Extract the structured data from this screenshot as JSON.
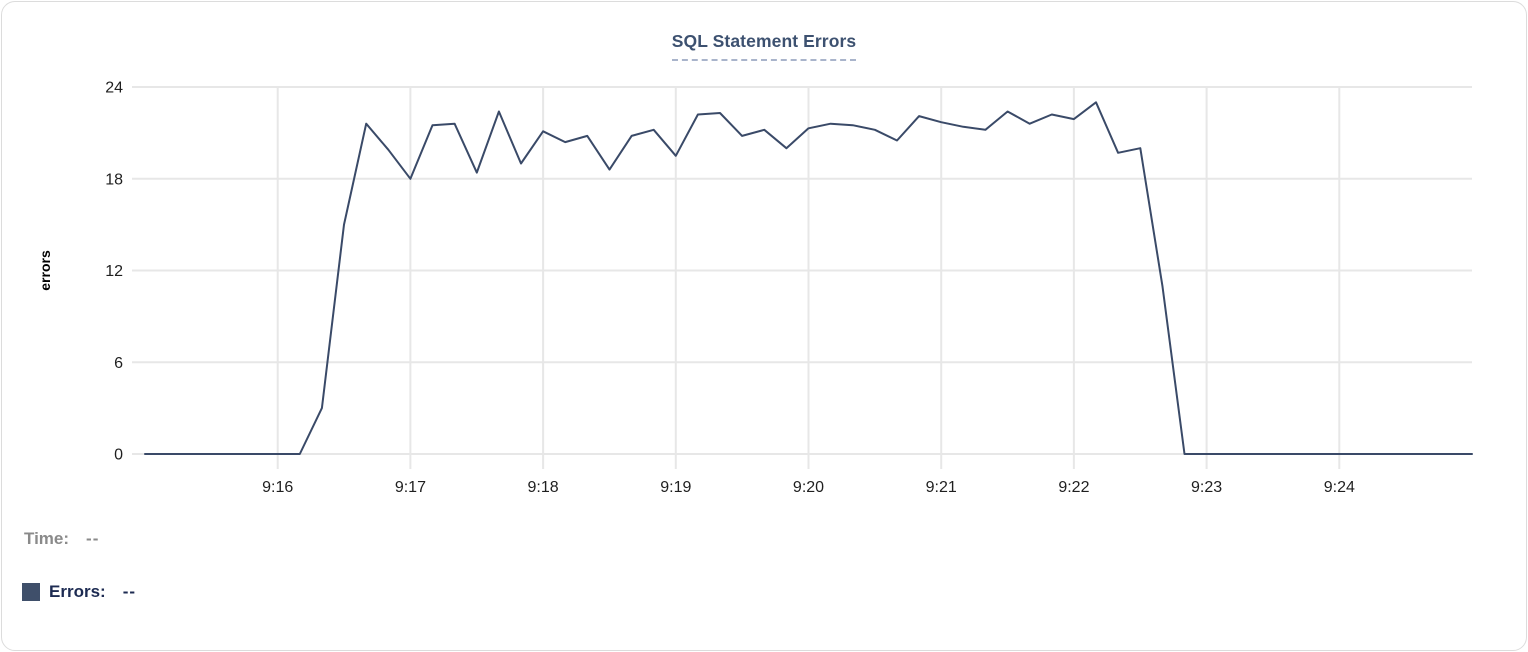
{
  "chart_data": {
    "type": "line",
    "title": "SQL Statement Errors",
    "xlabel": "",
    "ylabel": "errors",
    "ylim": [
      0,
      24
    ],
    "yticks": [
      0,
      6,
      12,
      18,
      24
    ],
    "x_range": [
      "9:15:00",
      "9:25:00"
    ],
    "x_tick_labels": [
      "9:16",
      "9:17",
      "9:18",
      "9:19",
      "9:20",
      "9:21",
      "9:22",
      "9:23",
      "9:24"
    ],
    "grid": true,
    "legend_position": "bottom-left",
    "series": [
      {
        "name": "Errors",
        "color": "#3a4a68",
        "x": [
          "9:15:00",
          "9:15:10",
          "9:15:20",
          "9:15:30",
          "9:15:40",
          "9:15:50",
          "9:16:00",
          "9:16:10",
          "9:16:20",
          "9:16:30",
          "9:16:40",
          "9:16:50",
          "9:17:00",
          "9:17:10",
          "9:17:20",
          "9:17:30",
          "9:17:40",
          "9:17:50",
          "9:18:00",
          "9:18:10",
          "9:18:20",
          "9:18:30",
          "9:18:40",
          "9:18:50",
          "9:19:00",
          "9:19:10",
          "9:19:20",
          "9:19:30",
          "9:19:40",
          "9:19:50",
          "9:20:00",
          "9:20:10",
          "9:20:20",
          "9:20:30",
          "9:20:40",
          "9:20:50",
          "9:21:00",
          "9:21:10",
          "9:21:20",
          "9:21:30",
          "9:21:40",
          "9:21:50",
          "9:22:00",
          "9:22:10",
          "9:22:20",
          "9:22:30",
          "9:22:40",
          "9:22:50",
          "9:23:00",
          "9:23:10",
          "9:23:20",
          "9:23:30",
          "9:23:40",
          "9:23:50",
          "9:24:00",
          "9:24:10",
          "9:24:20",
          "9:24:30",
          "9:24:40",
          "9:24:50",
          "9:25:00"
        ],
        "values": [
          0,
          0,
          0,
          0,
          0,
          0,
          0,
          0,
          3,
          15,
          21.6,
          19.9,
          18,
          21.5,
          21.6,
          18.4,
          22.4,
          19,
          21.1,
          20.4,
          20.8,
          18.6,
          20.8,
          21.2,
          19.5,
          22.2,
          22.3,
          20.8,
          21.2,
          20,
          21.3,
          21.6,
          21.5,
          21.2,
          20.5,
          22.1,
          21.7,
          21.4,
          21.2,
          22.4,
          21.6,
          22.2,
          21.9,
          23,
          19.7,
          20,
          11,
          0,
          0,
          0,
          0,
          0,
          0,
          0,
          0,
          0,
          0,
          0,
          0,
          0,
          0
        ]
      }
    ]
  },
  "readout": {
    "time_label": "Time:",
    "time_value": "--",
    "errors_label": "Errors:",
    "errors_value": "--",
    "swatch_color": "#3f4f6a"
  },
  "colors": {
    "title_text": "#3d5170",
    "title_underline": "#a9b4cb",
    "gridline": "#e7e7e7",
    "tick_text": "#1f1f1f",
    "axis_title_text": "#000000",
    "time_text": "#8a8a8a",
    "errors_text": "#1d2b52",
    "card_border": "#dcdcdc"
  }
}
